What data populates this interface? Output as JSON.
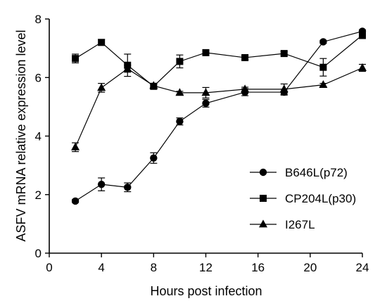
{
  "chart_data": {
    "type": "line",
    "title": "",
    "xlabel": "Hours post infection",
    "ylabel": "ASFV mRNA relative expression level",
    "xlim": [
      0,
      24
    ],
    "ylim": [
      0,
      8
    ],
    "xticks": [
      0,
      4,
      8,
      12,
      16,
      20,
      24
    ],
    "yticks": [
      0,
      2,
      4,
      6,
      8
    ],
    "grid": false,
    "legend_position": "bottom-right",
    "x": [
      2,
      4,
      6,
      8,
      10,
      12,
      15,
      18,
      21,
      24
    ],
    "series": [
      {
        "name": "B646L(p72)",
        "marker": "circle",
        "values": [
          1.78,
          2.35,
          2.25,
          3.25,
          4.5,
          5.12,
          5.5,
          5.5,
          7.22,
          7.58
        ],
        "errors": [
          0.05,
          0.22,
          0.15,
          0.18,
          0.12,
          0.13,
          0.12,
          0.1,
          0.05,
          0.05
        ]
      },
      {
        "name": "CP204L(p30)",
        "marker": "square",
        "values": [
          6.65,
          7.2,
          6.42,
          5.7,
          6.55,
          6.85,
          6.68,
          6.82,
          6.35,
          7.45
        ],
        "errors": [
          0.15,
          0.1,
          0.38,
          0.08,
          0.22,
          0.07,
          0.07,
          0.07,
          0.3,
          0.12
        ]
      },
      {
        "name": "I267L",
        "marker": "triangle",
        "values": [
          3.62,
          5.65,
          6.3,
          5.72,
          5.48,
          5.48,
          5.6,
          5.6,
          5.75,
          6.33
        ],
        "errors": [
          0.15,
          0.15,
          0.12,
          0.07,
          0.05,
          0.18,
          0.07,
          0.18,
          0.05,
          0.12
        ]
      }
    ]
  }
}
